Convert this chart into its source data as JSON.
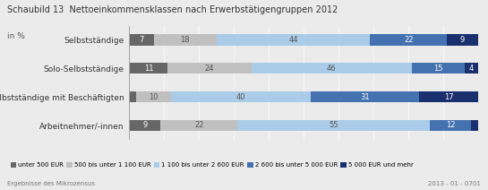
{
  "title_bold": "Schaubild 13",
  "title_rest": "  Nettoeinkommensklassen nach Erwerbstätigengruppen 2012",
  "subtitle": "in %",
  "categories": [
    "Selbstständige",
    "Solo-Selbstständige",
    "Selbstständige mit Beschäftigten",
    "Arbeitnehmer/-innen"
  ],
  "segments": [
    [
      7,
      18,
      44,
      22,
      9
    ],
    [
      11,
      24,
      46,
      15,
      4
    ],
    [
      2,
      10,
      40,
      31,
      17
    ],
    [
      9,
      22,
      55,
      12,
      2
    ]
  ],
  "colors": [
    "#666666",
    "#c0c0c0",
    "#aacce8",
    "#4472b0",
    "#1a2f6e"
  ],
  "text_colors": [
    "white",
    "#555555",
    "#555555",
    "white",
    "white"
  ],
  "legend_labels": [
    "unter 500 EUR",
    "500 bis unter 1 100 EUR",
    "1 100 bis unter 2 600 EUR",
    "2 600 bis unter 5 000 EUR",
    "5 000 EUR und mehr"
  ],
  "footer_left": "Ergebnisse des Mikrozensus",
  "footer_right": "2013 - 01 - 0701",
  "background_color": "#ebebeb",
  "chart_bg": "#ebebeb"
}
